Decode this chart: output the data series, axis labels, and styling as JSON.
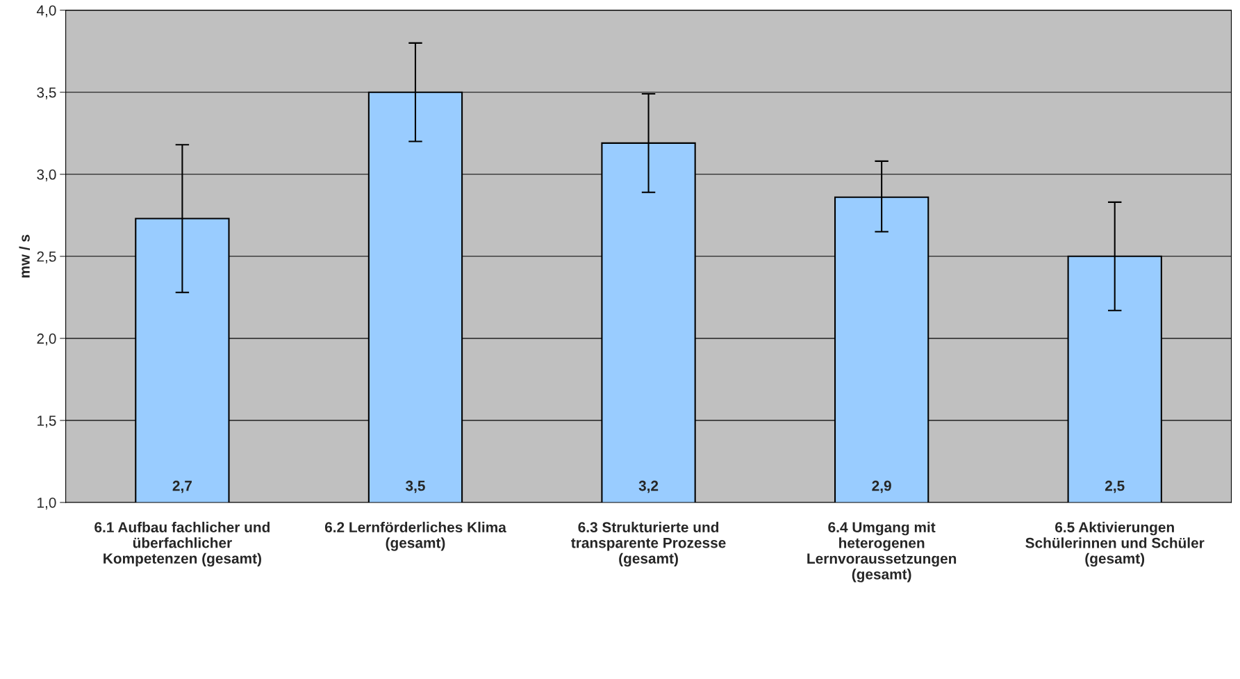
{
  "chart_data": {
    "type": "bar",
    "ylabel": "mw / s",
    "categories": [
      "6.1 Aufbau fachlicher und\nüberfachlicher\nKompetenzen (gesamt)",
      "6.2 Lernförderliches Klima\n(gesamt)",
      "6.3 Strukturierte und\ntransparente Prozesse\n(gesamt)",
      "6.4 Umgang mit\nheterogenen\nLernvoraussetzungen\n(gesamt)",
      "6.5 Aktivierungen\nSchülerinnen und Schüler\n(gesamt)"
    ],
    "values": [
      2.73,
      3.5,
      3.19,
      2.86,
      2.5
    ],
    "errors": [
      [
        2.28,
        3.18
      ],
      [
        3.2,
        3.8
      ],
      [
        2.89,
        3.49
      ],
      [
        2.65,
        3.08
      ],
      [
        2.17,
        2.83
      ]
    ],
    "value_labels": [
      "2,7",
      "3,5",
      "3,2",
      "2,9",
      "2,5"
    ],
    "color": "#99ccff",
    "ylim": [
      1.0,
      4.0
    ],
    "yticks": [
      {
        "value": 1.0,
        "label": "1,0"
      },
      {
        "value": 1.5,
        "label": "1,5"
      },
      {
        "value": 2.0,
        "label": "2,0"
      },
      {
        "value": 2.5,
        "label": "2,5"
      },
      {
        "value": 3.0,
        "label": "3,0"
      },
      {
        "value": 3.5,
        "label": "3,5"
      },
      {
        "value": 4.0,
        "label": "4,0"
      }
    ],
    "grid": "y"
  }
}
